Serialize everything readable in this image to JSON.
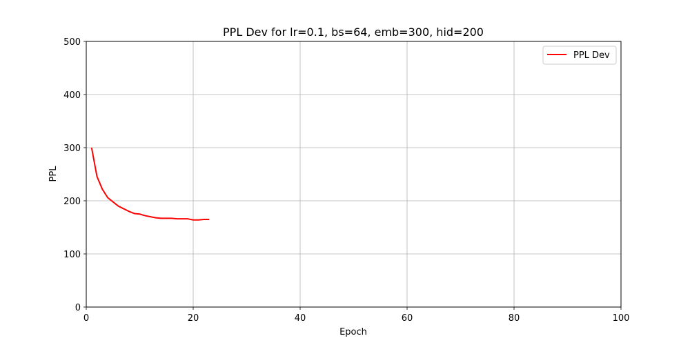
{
  "chart_data": {
    "type": "line",
    "title": "PPL Dev for lr=0.1, bs=64, emb=300, hid=200",
    "xlabel": "Epoch",
    "ylabel": "PPL",
    "xlim": [
      0,
      100
    ],
    "ylim": [
      0,
      500
    ],
    "xticks": [
      0,
      20,
      40,
      60,
      80,
      100
    ],
    "yticks": [
      0,
      100,
      200,
      300,
      400,
      500
    ],
    "grid": true,
    "legend_position": "top-right",
    "series": [
      {
        "name": "PPL Dev",
        "color": "#ff0000",
        "x": [
          1,
          2,
          3,
          4,
          5,
          6,
          7,
          8,
          9,
          10,
          11,
          12,
          13,
          14,
          15,
          16,
          17,
          18,
          19,
          20,
          21,
          22,
          23
        ],
        "y": [
          300,
          246,
          222,
          206,
          198,
          190,
          185,
          180,
          176,
          175,
          172,
          170,
          168,
          167,
          167,
          167,
          166,
          166,
          166,
          164,
          164,
          165,
          165
        ]
      }
    ]
  }
}
